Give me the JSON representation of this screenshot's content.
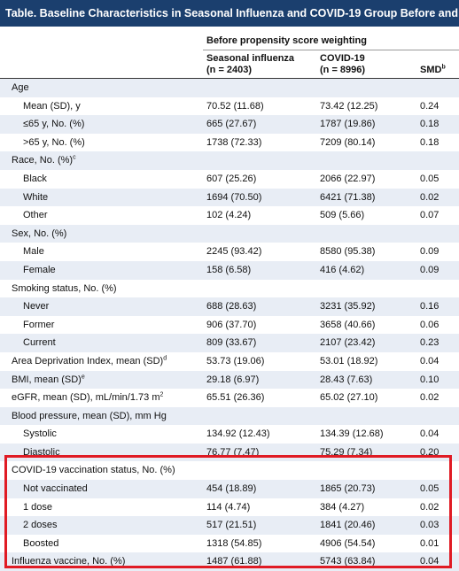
{
  "title": "Table. Baseline Characteristics in Seasonal Influenza and COVID-19 Group Before and After Prop",
  "group_header": "Before propensity score weighting",
  "columns": {
    "col1": {
      "line1": "Seasonal influenza",
      "line2": "(n = 2403)"
    },
    "col2": {
      "line1": "COVID-19",
      "line2": "(n = 8996)"
    },
    "col3": {
      "label": "SMD",
      "sup": "b"
    }
  },
  "rows": [
    {
      "label": "Age",
      "sup": "",
      "c1": "",
      "c2": "",
      "c3": ""
    },
    {
      "label": "Mean (SD), y",
      "sup": "",
      "c1": "70.52 (11.68)",
      "c2": "73.42 (12.25)",
      "c3": "0.24"
    },
    {
      "label": "≤65 y, No. (%)",
      "sup": "",
      "c1": "665 (27.67)",
      "c2": "1787 (19.86)",
      "c3": "0.18"
    },
    {
      "label": ">65 y, No. (%)",
      "sup": "",
      "c1": "1738 (72.33)",
      "c2": "7209 (80.14)",
      "c3": "0.18"
    },
    {
      "label": "Race, No. (%)",
      "sup": "c",
      "c1": "",
      "c2": "",
      "c3": ""
    },
    {
      "label": "Black",
      "sup": "",
      "c1": "607 (25.26)",
      "c2": "2066 (22.97)",
      "c3": "0.05"
    },
    {
      "label": "White",
      "sup": "",
      "c1": "1694 (70.50)",
      "c2": "6421 (71.38)",
      "c3": "0.02"
    },
    {
      "label": "Other",
      "sup": "",
      "c1": "102 (4.24)",
      "c2": "509 (5.66)",
      "c3": "0.07"
    },
    {
      "label": "Sex, No. (%)",
      "sup": "",
      "c1": "",
      "c2": "",
      "c3": ""
    },
    {
      "label": "Male",
      "sup": "",
      "c1": "2245 (93.42)",
      "c2": "8580 (95.38)",
      "c3": "0.09"
    },
    {
      "label": "Female",
      "sup": "",
      "c1": "158 (6.58)",
      "c2": "416 (4.62)",
      "c3": "0.09"
    },
    {
      "label": "Smoking status, No. (%)",
      "sup": "",
      "c1": "",
      "c2": "",
      "c3": ""
    },
    {
      "label": "Never",
      "sup": "",
      "c1": "688 (28.63)",
      "c2": "3231 (35.92)",
      "c3": "0.16"
    },
    {
      "label": "Former",
      "sup": "",
      "c1": "906 (37.70)",
      "c2": "3658 (40.66)",
      "c3": "0.06"
    },
    {
      "label": "Current",
      "sup": "",
      "c1": "809 (33.67)",
      "c2": "2107 (23.42)",
      "c3": "0.23"
    },
    {
      "label": "Area Deprivation Index, mean (SD)",
      "sup": "d",
      "c1": "53.73 (19.06)",
      "c2": "53.01 (18.92)",
      "c3": "0.04"
    },
    {
      "label": "BMI, mean (SD)",
      "sup": "e",
      "c1": "29.18 (6.97)",
      "c2": "28.43 (7.63)",
      "c3": "0.10"
    },
    {
      "label": "eGFR, mean (SD), mL/min/1.73 m",
      "sup": "2",
      "c1": "65.51 (26.36)",
      "c2": "65.02 (27.10)",
      "c3": "0.02"
    },
    {
      "label": "Blood pressure, mean (SD), mm Hg",
      "sup": "",
      "c1": "",
      "c2": "",
      "c3": ""
    },
    {
      "label": "Systolic",
      "sup": "",
      "c1": "134.92 (12.43)",
      "c2": "134.39 (12.68)",
      "c3": "0.04"
    },
    {
      "label": "Diastolic",
      "sup": "",
      "c1": "76.77 (7.47)",
      "c2": "75.29 (7.34)",
      "c3": "0.20"
    },
    {
      "label": "COVID-19 vaccination status, No. (%)",
      "sup": "",
      "c1": "",
      "c2": "",
      "c3": ""
    },
    {
      "label": "Not vaccinated",
      "sup": "",
      "c1": "454 (18.89)",
      "c2": "1865 (20.73)",
      "c3": "0.05"
    },
    {
      "label": "1 dose",
      "sup": "",
      "c1": "114 (4.74)",
      "c2": "384 (4.27)",
      "c3": "0.02"
    },
    {
      "label": "2 doses",
      "sup": "",
      "c1": "517 (21.51)",
      "c2": "1841 (20.46)",
      "c3": "0.03"
    },
    {
      "label": "Boosted",
      "sup": "",
      "c1": "1318 (54.85)",
      "c2": "4906 (54.54)",
      "c3": "0.01"
    },
    {
      "label": "Influenza vaccine, No. (%)",
      "sup": "",
      "c1": "1487 (61.88)",
      "c2": "5743 (63.84)",
      "c3": "0.04"
    }
  ],
  "colors": {
    "title_bg": "#1b3f6e",
    "alt_row": "#e8edf5",
    "highlight": "#e01b24"
  }
}
